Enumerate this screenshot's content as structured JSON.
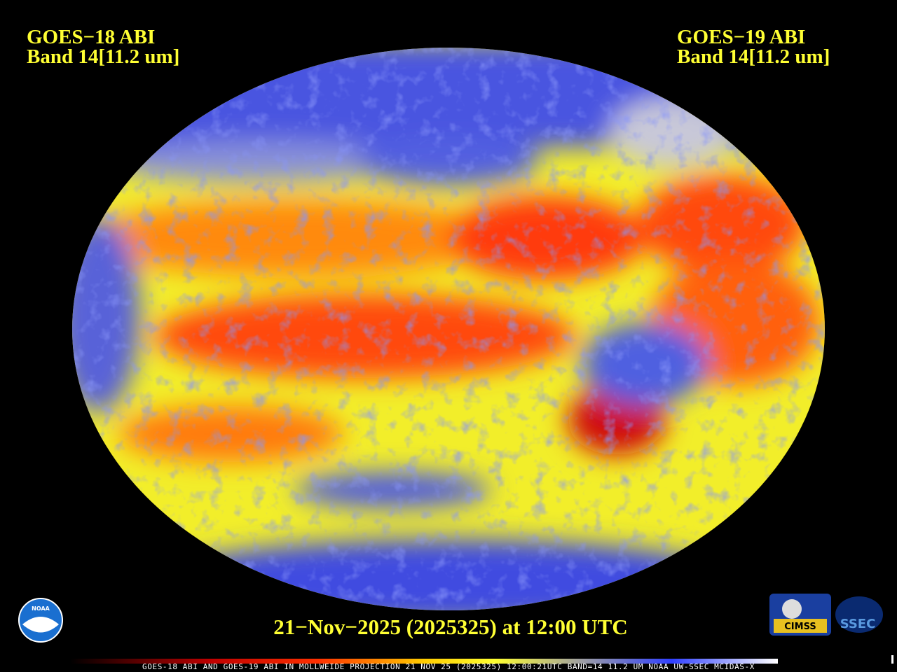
{
  "header": {
    "left": {
      "satellite": "GOES−18 ABI",
      "band": "Band 14[11.2 um]"
    },
    "right": {
      "satellite": "GOES−19 ABI",
      "band": "Band 14[11.2 um]"
    }
  },
  "caption": "21−Nov−2025 (2025325) at 12:00 UTC",
  "footer": "GOES-18 ABI AND GOES-19 ABI IN MOLLWEIDE PROJECTION 21 NOV 25 (2025325) 12:00:21UTC BAND=14 11.2 UM NOAA UW-SSEC MCIDAS-X",
  "logos": {
    "noaa": "NOAA",
    "cimss": "CIMSS",
    "ssec": "SSEC"
  }
}
